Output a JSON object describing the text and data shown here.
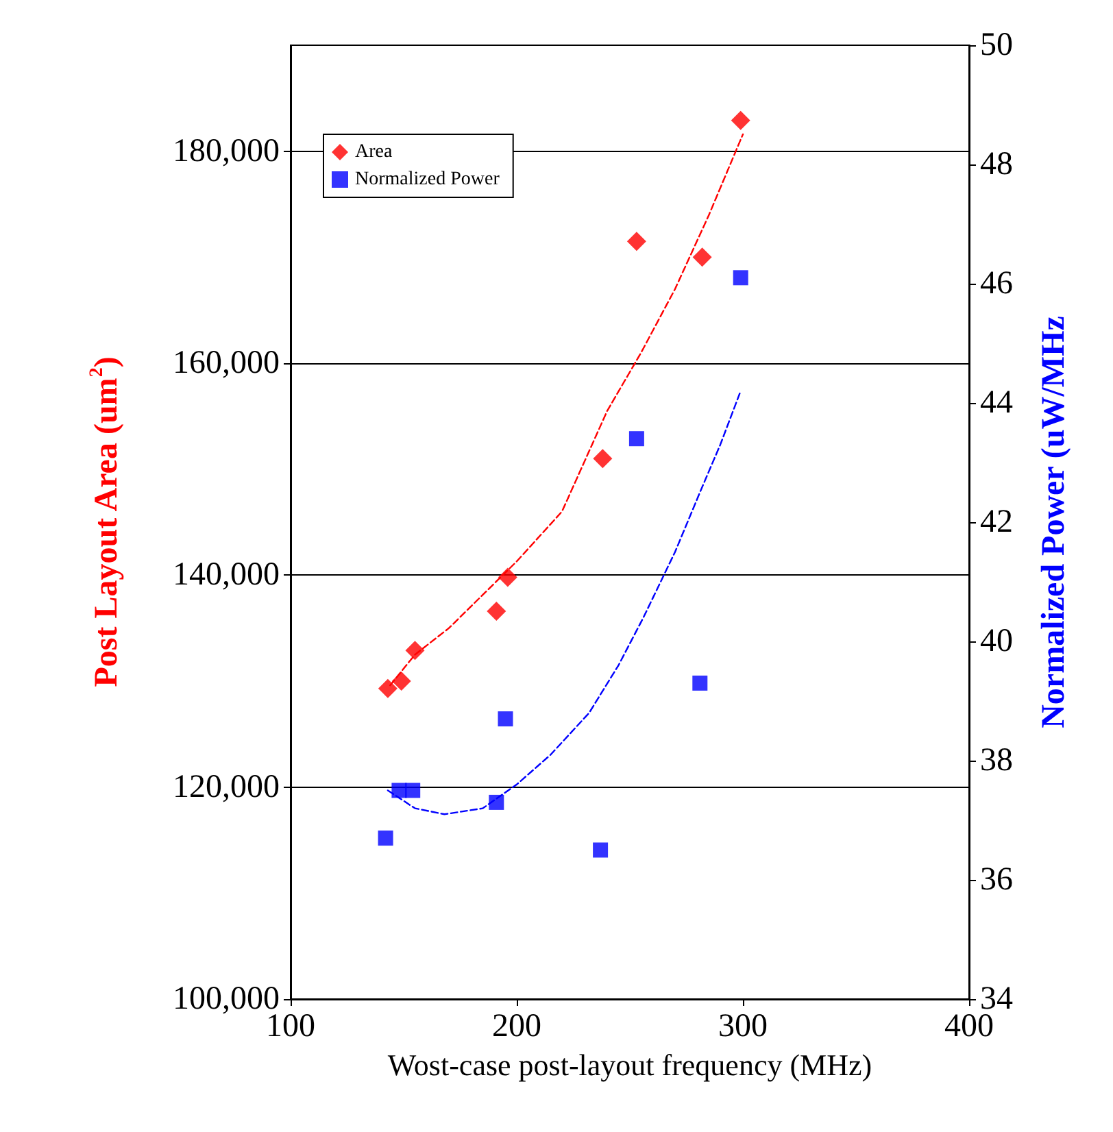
{
  "chart_data": {
    "type": "scatter",
    "xlabel": "Wost-case post-layout frequency (MHz)",
    "ylabel": "Post Layout Area (um$^{2}$)",
    "y2label": "Normalized Power (uW/MHz",
    "xlim": [
      100,
      400
    ],
    "xticks": [
      100,
      200,
      300,
      400
    ],
    "ylim": [
      100000,
      190000
    ],
    "yticks": [
      {
        "value": 100000,
        "label": "100,000"
      },
      {
        "value": 120000,
        "label": "120,000"
      },
      {
        "value": 140000,
        "label": "140,000"
      },
      {
        "value": 160000,
        "label": "160,000"
      },
      {
        "value": 180000,
        "label": "180,000"
      }
    ],
    "y2lim": [
      34,
      50
    ],
    "y2ticks": [
      34,
      36,
      38,
      40,
      42,
      44,
      46,
      48,
      50
    ],
    "grid": "y",
    "legend": "top left",
    "series": [
      {
        "name": "Area",
        "color": "#ff0000",
        "marker": "diamond",
        "x": [
          143,
          149,
          155,
          191,
          196,
          238,
          253,
          282,
          299
        ],
        "values": [
          129300,
          130000,
          132900,
          136600,
          139800,
          151000,
          171500,
          170000,
          182900
        ]
      },
      {
        "name": "Normalized Power",
        "color": "#0000ff",
        "marker": "square",
        "axis": "y2",
        "x": [
          142,
          148,
          154,
          191,
          195,
          237,
          253,
          281,
          299
        ],
        "values": [
          36.7,
          37.5,
          37.5,
          37.3,
          38.7,
          36.5,
          43.4,
          39.3,
          46.1
        ]
      },
      {
        "type": "line",
        "color": "#ff0000",
        "marker": "none",
        "line_style": "dashed",
        "x": [
          144,
          155,
          170,
          200,
          220,
          240,
          255,
          270,
          285,
          300
        ],
        "values": [
          129600,
          132500,
          135000,
          141300,
          146000,
          155500,
          161000,
          167000,
          174000,
          181600
        ]
      },
      {
        "type": "line",
        "color": "#0000ff",
        "marker": "none",
        "line_style": "dashed",
        "axis": "y2",
        "x": [
          143,
          155,
          168,
          185,
          200,
          215,
          232,
          245,
          256,
          270,
          281,
          290,
          299
        ],
        "values": [
          37.5,
          37.2,
          37.1,
          37.2,
          37.6,
          38.1,
          38.8,
          39.6,
          40.4,
          41.5,
          42.5,
          43.3,
          44.2
        ]
      }
    ]
  }
}
